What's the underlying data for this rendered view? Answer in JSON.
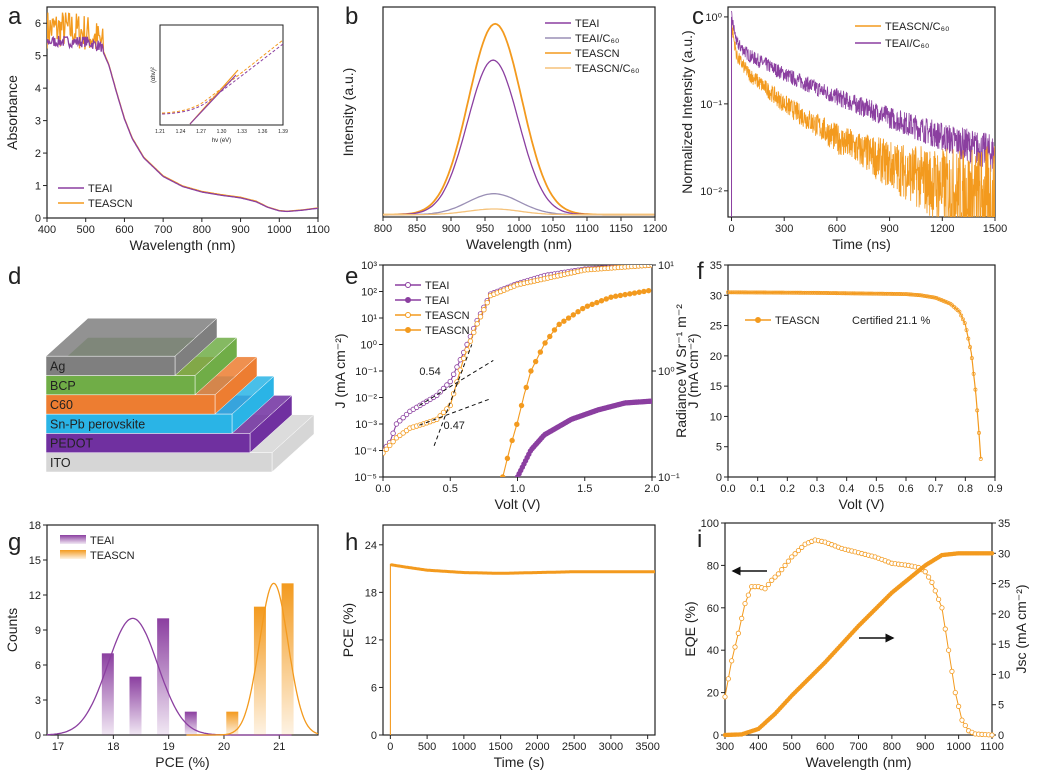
{
  "colors": {
    "purple": "#8b3fa0",
    "orange": "#f39a1e",
    "purple_light": "#9a8fb5",
    "orange_light": "#f5c27a"
  },
  "chart_data": [
    {
      "panel": "a",
      "type": "line",
      "xlabel": "Wavelength (nm)",
      "ylabel": "Absorbance",
      "xlim": [
        400,
        1100
      ],
      "ylim": [
        0,
        6.5
      ],
      "xticks": [
        400,
        500,
        600,
        700,
        800,
        900,
        1000,
        1100
      ],
      "yticks": [
        0,
        1,
        2,
        3,
        4,
        5,
        6
      ],
      "series": [
        {
          "name": "TEAI",
          "color": "#8b3fa0",
          "points": [
            [
              400,
              5.4
            ],
            [
              450,
              5.4
            ],
            [
              500,
              5.4
            ],
            [
              540,
              5.25
            ],
            [
              560,
              4.7
            ],
            [
              580,
              3.85
            ],
            [
              600,
              3.05
            ],
            [
              620,
              2.45
            ],
            [
              650,
              1.85
            ],
            [
              700,
              1.28
            ],
            [
              750,
              0.97
            ],
            [
              800,
              0.8
            ],
            [
              850,
              0.7
            ],
            [
              900,
              0.62
            ],
            [
              940,
              0.5
            ],
            [
              970,
              0.33
            ],
            [
              1000,
              0.22
            ],
            [
              1020,
              0.2
            ],
            [
              1060,
              0.24
            ],
            [
              1100,
              0.3
            ]
          ]
        },
        {
          "name": "TEASCN",
          "color": "#f39a1e",
          "points": [
            [
              400,
              5.7
            ],
            [
              450,
              5.7
            ],
            [
              500,
              5.6
            ],
            [
              540,
              5.3
            ],
            [
              560,
              4.72
            ],
            [
              580,
              3.87
            ],
            [
              600,
              3.07
            ],
            [
              620,
              2.47
            ],
            [
              650,
              1.87
            ],
            [
              700,
              1.3
            ],
            [
              750,
              0.99
            ],
            [
              800,
              0.82
            ],
            [
              850,
              0.72
            ],
            [
              900,
              0.64
            ],
            [
              940,
              0.52
            ],
            [
              970,
              0.34
            ],
            [
              1000,
              0.23
            ],
            [
              1020,
              0.21
            ],
            [
              1060,
              0.25
            ],
            [
              1100,
              0.31
            ]
          ]
        }
      ],
      "legend": "bottom-left",
      "inset": {
        "xlabel": "hν (eV)",
        "ylabel": "(αhν)²",
        "xlim": [
          1.21,
          1.39
        ],
        "xticks": [
          "1.21",
          "1.24",
          "1.27",
          "1.30",
          "1.33",
          "1.36",
          "1.39"
        ]
      }
    },
    {
      "panel": "b",
      "type": "line",
      "xlabel": "Wavelength (nm)",
      "ylabel": "Intensity (a.u.)",
      "xlim": [
        800,
        1200
      ],
      "ylim": [
        0,
        1.1
      ],
      "xticks": [
        800,
        850,
        900,
        950,
        1000,
        1050,
        1100,
        1150,
        1200
      ],
      "series": [
        {
          "name": "TEAI",
          "color": "#8b3fa0",
          "peak_nm": 962,
          "fwhm_nm": 88,
          "peak": 0.81
        },
        {
          "name": "TEAI/C₆₀",
          "color": "#9a8fb5",
          "peak_nm": 963,
          "fwhm_nm": 90,
          "peak": 0.11
        },
        {
          "name": "TEASCN",
          "color": "#f39a1e",
          "peak_nm": 965,
          "fwhm_nm": 92,
          "peak": 1.0
        },
        {
          "name": "TEASCN/C₆₀",
          "color": "#f5c27a",
          "peak_nm": 963,
          "fwhm_nm": 90,
          "peak": 0.03
        }
      ],
      "legend": "top-right"
    },
    {
      "panel": "c",
      "type": "line",
      "xlabel": "Time (ns)",
      "ylabel": "Normalized Intensity (a.u.)",
      "xlim": [
        -20,
        1500
      ],
      "ylim": [
        0.005,
        1.3
      ],
      "yscale": "log",
      "xticks": [
        0,
        300,
        600,
        900,
        1200,
        1500
      ],
      "yticks": [
        0.01,
        0.1,
        1
      ],
      "yticklabels": [
        "10⁻²",
        "10⁻¹",
        "10⁰"
      ],
      "series": [
        {
          "name": "TEASCN/C₆₀",
          "color": "#f39a1e",
          "points": [
            [
              0,
              0.8
            ],
            [
              30,
              0.35
            ],
            [
              100,
              0.22
            ],
            [
              300,
              0.1
            ],
            [
              600,
              0.04
            ],
            [
              900,
              0.02
            ],
            [
              1200,
              0.011
            ],
            [
              1500,
              0.007
            ]
          ]
        },
        {
          "name": "TEAI/C₆₀",
          "color": "#8b3fa0",
          "points": [
            [
              0,
              1
            ],
            [
              30,
              0.5
            ],
            [
              100,
              0.36
            ],
            [
              300,
              0.22
            ],
            [
              600,
              0.12
            ],
            [
              900,
              0.07
            ],
            [
              1200,
              0.042
            ],
            [
              1500,
              0.026
            ]
          ]
        }
      ],
      "legend": "top-right"
    },
    {
      "panel": "d",
      "type": "diagram",
      "layers": [
        {
          "label": "ITO",
          "color": "#d6d6d6"
        },
        {
          "label": "PEDOT",
          "color": "#7030a0"
        },
        {
          "label": "Sn-Pb perovskite",
          "color": "#2ab4e6"
        },
        {
          "label": "C60",
          "color": "#ed7d31"
        },
        {
          "label": "BCP",
          "color": "#70ad47"
        },
        {
          "label": "Ag",
          "color": "#7f7f7f"
        }
      ]
    },
    {
      "panel": "e",
      "type": "line",
      "xlabel": "Volt (V)",
      "ylabel": "J (mA cm⁻²)",
      "y2label": "Radiance W Sr⁻¹ m⁻²",
      "xlim": [
        0,
        2
      ],
      "ylim": [
        1e-05,
        1000.0
      ],
      "yscale": "log",
      "y2lim": [
        0.1,
        10
      ],
      "xticks": [
        0,
        0.5,
        1,
        1.5,
        2
      ],
      "xticklabels": [
        "0.0",
        "0.5",
        "1.0",
        "1.5",
        "2.0"
      ],
      "yticks": [
        1e-05,
        0.0001,
        0.001,
        0.01,
        0.1,
        1,
        10,
        100,
        1000
      ],
      "yticklabels": [
        "10⁻⁵",
        "10⁻⁴",
        "10⁻³",
        "10⁻²",
        "10⁻¹",
        "10⁰",
        "10¹",
        "10²",
        "10³"
      ],
      "y2ticks": [
        0.1,
        1,
        10
      ],
      "y2ticklabels": [
        "10⁻¹",
        "10⁰",
        "10¹"
      ],
      "series": [
        {
          "name": "TEAI",
          "color": "#8b3fa0",
          "marker": "open",
          "axis": "left",
          "points": [
            [
              0,
              0.0001
            ],
            [
              0.05,
              0.0002
            ],
            [
              0.1,
              0.001
            ],
            [
              0.2,
              0.003
            ],
            [
              0.3,
              0.006
            ],
            [
              0.4,
              0.012
            ],
            [
              0.5,
              0.04
            ],
            [
              0.6,
              0.5
            ],
            [
              0.7,
              8
            ],
            [
              0.8,
              80
            ],
            [
              1.0,
              200
            ],
            [
              1.2,
              400
            ],
            [
              1.5,
              700
            ],
            [
              2.0,
              1000
            ]
          ]
        },
        {
          "name": "TEAI",
          "color": "#8b3fa0",
          "marker": "filled",
          "axis": "right",
          "points": [
            [
              1.0,
              0.1
            ],
            [
              1.1,
              0.18
            ],
            [
              1.2,
              0.25
            ],
            [
              1.4,
              0.35
            ],
            [
              1.6,
              0.43
            ],
            [
              1.8,
              0.5
            ],
            [
              2.0,
              0.52
            ]
          ]
        },
        {
          "name": "TEASCN",
          "color": "#f39a1e",
          "marker": "open",
          "axis": "left",
          "points": [
            [
              0,
              8e-05
            ],
            [
              0.1,
              0.0003
            ],
            [
              0.2,
              0.0007
            ],
            [
              0.3,
              0.001
            ],
            [
              0.4,
              0.0015
            ],
            [
              0.5,
              0.005
            ],
            [
              0.6,
              0.3
            ],
            [
              0.7,
              6
            ],
            [
              0.8,
              70
            ],
            [
              1.0,
              180
            ],
            [
              1.5,
              650
            ],
            [
              2.0,
              1000
            ]
          ]
        },
        {
          "name": "TEASCN",
          "color": "#f39a1e",
          "marker": "filled",
          "axis": "right",
          "points": [
            [
              0.89,
              0.1
            ],
            [
              0.95,
              0.2
            ],
            [
              1.0,
              0.33
            ],
            [
              1.05,
              0.6
            ],
            [
              1.1,
              1.0
            ],
            [
              1.2,
              1.8
            ],
            [
              1.3,
              2.7
            ],
            [
              1.5,
              4.0
            ],
            [
              1.7,
              5.0
            ],
            [
              2.0,
              5.8
            ]
          ]
        }
      ],
      "annotations": [
        {
          "text": "0.54",
          "color": "#a555c0",
          "x": 0.54
        },
        {
          "text": "0.47",
          "color": "#d0342c",
          "x": 0.47
        }
      ],
      "legend": "top-left"
    },
    {
      "panel": "f",
      "type": "line",
      "xlabel": "Volt (V)",
      "ylabel": "J (mA cm⁻²)",
      "xlim": [
        0,
        0.9
      ],
      "ylim": [
        0,
        35
      ],
      "xticks": [
        0,
        0.1,
        0.2,
        0.3,
        0.4,
        0.5,
        0.6,
        0.7,
        0.8,
        0.9
      ],
      "xticklabels": [
        "0.0",
        "0.1",
        "0.2",
        "0.3",
        "0.4",
        "0.5",
        "0.6",
        "0.7",
        "0.8",
        "0.9"
      ],
      "yticks": [
        0,
        5,
        10,
        15,
        20,
        25,
        30,
        35
      ],
      "series": [
        {
          "name": "TEASCN",
          "color": "#f39a1e",
          "marker": "filled",
          "points": [
            [
              0,
              30.5
            ],
            [
              0.3,
              30.4
            ],
            [
              0.6,
              30.2
            ],
            [
              0.65,
              30.0
            ],
            [
              0.7,
              29.6
            ],
            [
              0.75,
              28.6
            ],
            [
              0.78,
              27.3
            ],
            [
              0.8,
              25.2
            ],
            [
              0.82,
              20.5
            ],
            [
              0.835,
              14
            ],
            [
              0.845,
              8
            ],
            [
              0.852,
              3
            ],
            [
              0.856,
              0
            ]
          ]
        }
      ],
      "annotation": "Certified 21.1 %",
      "legend": "center-left"
    },
    {
      "panel": "g",
      "type": "bar",
      "xlabel": "PCE (%)",
      "ylabel": "Counts",
      "xlim": [
        16.8,
        21.7
      ],
      "ylim": [
        0,
        18
      ],
      "xticks": [
        17,
        18,
        19,
        20,
        21
      ],
      "yticks": [
        0,
        3,
        6,
        9,
        12,
        15,
        18
      ],
      "series": [
        {
          "name": "TEAI",
          "color": "#8b3fa0",
          "bins": [
            17.9,
            18.4,
            18.9,
            19.4
          ],
          "counts": [
            7,
            5,
            10,
            2
          ],
          "fit": {
            "mean": 18.35,
            "sigma": 0.45,
            "peak": 10
          }
        },
        {
          "name": "TEASCN",
          "color": "#f39a1e",
          "bins": [
            20.15,
            20.65,
            21.15
          ],
          "counts": [
            2,
            11,
            13
          ],
          "fit": {
            "mean": 20.9,
            "sigma": 0.26,
            "peak": 13
          }
        }
      ],
      "legend": "top-left"
    },
    {
      "panel": "h",
      "type": "line",
      "xlabel": "Time (s)",
      "ylabel": "PCE (%)",
      "xlim": [
        -100,
        3600
      ],
      "ylim": [
        0,
        26.5
      ],
      "xticks": [
        0,
        500,
        1000,
        1500,
        2000,
        2500,
        3000,
        3500
      ],
      "yticks": [
        0,
        6,
        12,
        18,
        24
      ],
      "series": [
        {
          "color": "#f39a1e",
          "points": [
            [
              0,
              0
            ],
            [
              0,
              21.5
            ],
            [
              200,
              21.2
            ],
            [
              500,
              20.8
            ],
            [
              1000,
              20.5
            ],
            [
              1500,
              20.4
            ],
            [
              2000,
              20.5
            ],
            [
              2500,
              20.6
            ],
            [
              3000,
              20.6
            ],
            [
              3600,
              20.6
            ]
          ]
        }
      ]
    },
    {
      "panel": "i",
      "type": "line",
      "xlabel": "Wavelength (nm)",
      "ylabel": "EQE (%)",
      "y2label": "Jsc (mA cm⁻²)",
      "xlim": [
        300,
        1100
      ],
      "ylim": [
        0,
        100
      ],
      "y2lim": [
        0,
        35
      ],
      "xticks": [
        300,
        400,
        500,
        600,
        700,
        800,
        900,
        1000,
        1100
      ],
      "yticks": [
        0,
        20,
        40,
        60,
        80,
        100
      ],
      "y2ticks": [
        0,
        5,
        10,
        15,
        20,
        25,
        30,
        35
      ],
      "series": [
        {
          "name": "EQE",
          "color": "#f39a1e",
          "marker": "open",
          "axis": "left",
          "points": [
            [
              300,
              18
            ],
            [
              320,
              35
            ],
            [
              340,
              48
            ],
            [
              360,
              62
            ],
            [
              380,
              70
            ],
            [
              400,
              70
            ],
            [
              420,
              69
            ],
            [
              440,
              73
            ],
            [
              460,
              76
            ],
            [
              500,
              84
            ],
            [
              540,
              90
            ],
            [
              570,
              92
            ],
            [
              600,
              91
            ],
            [
              650,
              88
            ],
            [
              700,
              86
            ],
            [
              750,
              84
            ],
            [
              800,
              81
            ],
            [
              850,
              80
            ],
            [
              880,
              79
            ],
            [
              900,
              77
            ],
            [
              920,
              72
            ],
            [
              950,
              60
            ],
            [
              970,
              40
            ],
            [
              990,
              20
            ],
            [
              1010,
              7
            ],
            [
              1030,
              2
            ],
            [
              1050,
              0.5
            ],
            [
              1100,
              0
            ]
          ]
        },
        {
          "name": "Jsc",
          "color": "#f39a1e",
          "marker": "filled",
          "axis": "right",
          "points": [
            [
              300,
              0
            ],
            [
              350,
              0.1
            ],
            [
              400,
              1
            ],
            [
              450,
              3.5
            ],
            [
              500,
              6.5
            ],
            [
              600,
              12
            ],
            [
              700,
              18
            ],
            [
              800,
              23.5
            ],
            [
              900,
              28
            ],
            [
              950,
              29.7
            ],
            [
              1000,
              30
            ],
            [
              1100,
              30
            ]
          ]
        }
      ]
    }
  ]
}
